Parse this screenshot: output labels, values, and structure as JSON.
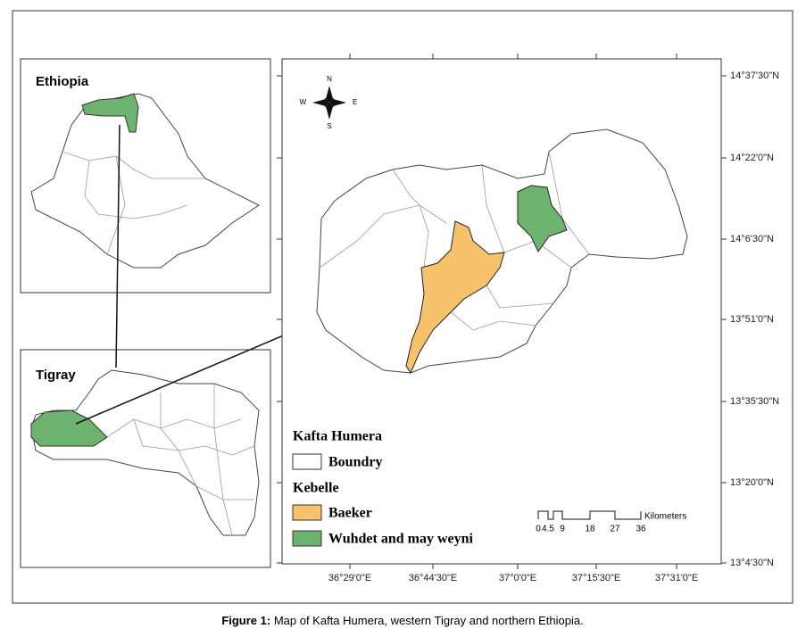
{
  "insets": {
    "ethiopia": "Ethiopia",
    "tigray": "Tigray"
  },
  "compass": {
    "n": "N",
    "s": "S",
    "e": "E",
    "w": "W"
  },
  "latitude_labels": [
    "14°37'30\"N",
    "14°22'0\"N",
    "14°6'30\"N",
    "13°51'0\"N",
    "13°35'30\"N",
    "13°20'0\"N",
    "13°4'30\"N"
  ],
  "longitude_labels": [
    "36°29'0\"E",
    "36°44'30\"E",
    "37°0'0\"E",
    "37°15'30\"E",
    "37°31'0\"E"
  ],
  "legend": {
    "title": "Kafta Humera",
    "boundary": "Boundry",
    "group": "Kebelle",
    "items": [
      "Baeker",
      "Wuhdet and may weyni"
    ]
  },
  "scale_bar": {
    "labels": [
      0,
      4.5,
      9,
      18,
      27,
      36
    ],
    "unit": "Kilometers"
  },
  "caption": {
    "label": "Figure 1:",
    "text": " Map of Kafta Humera, western Tigray and northern Ethiopia."
  }
}
